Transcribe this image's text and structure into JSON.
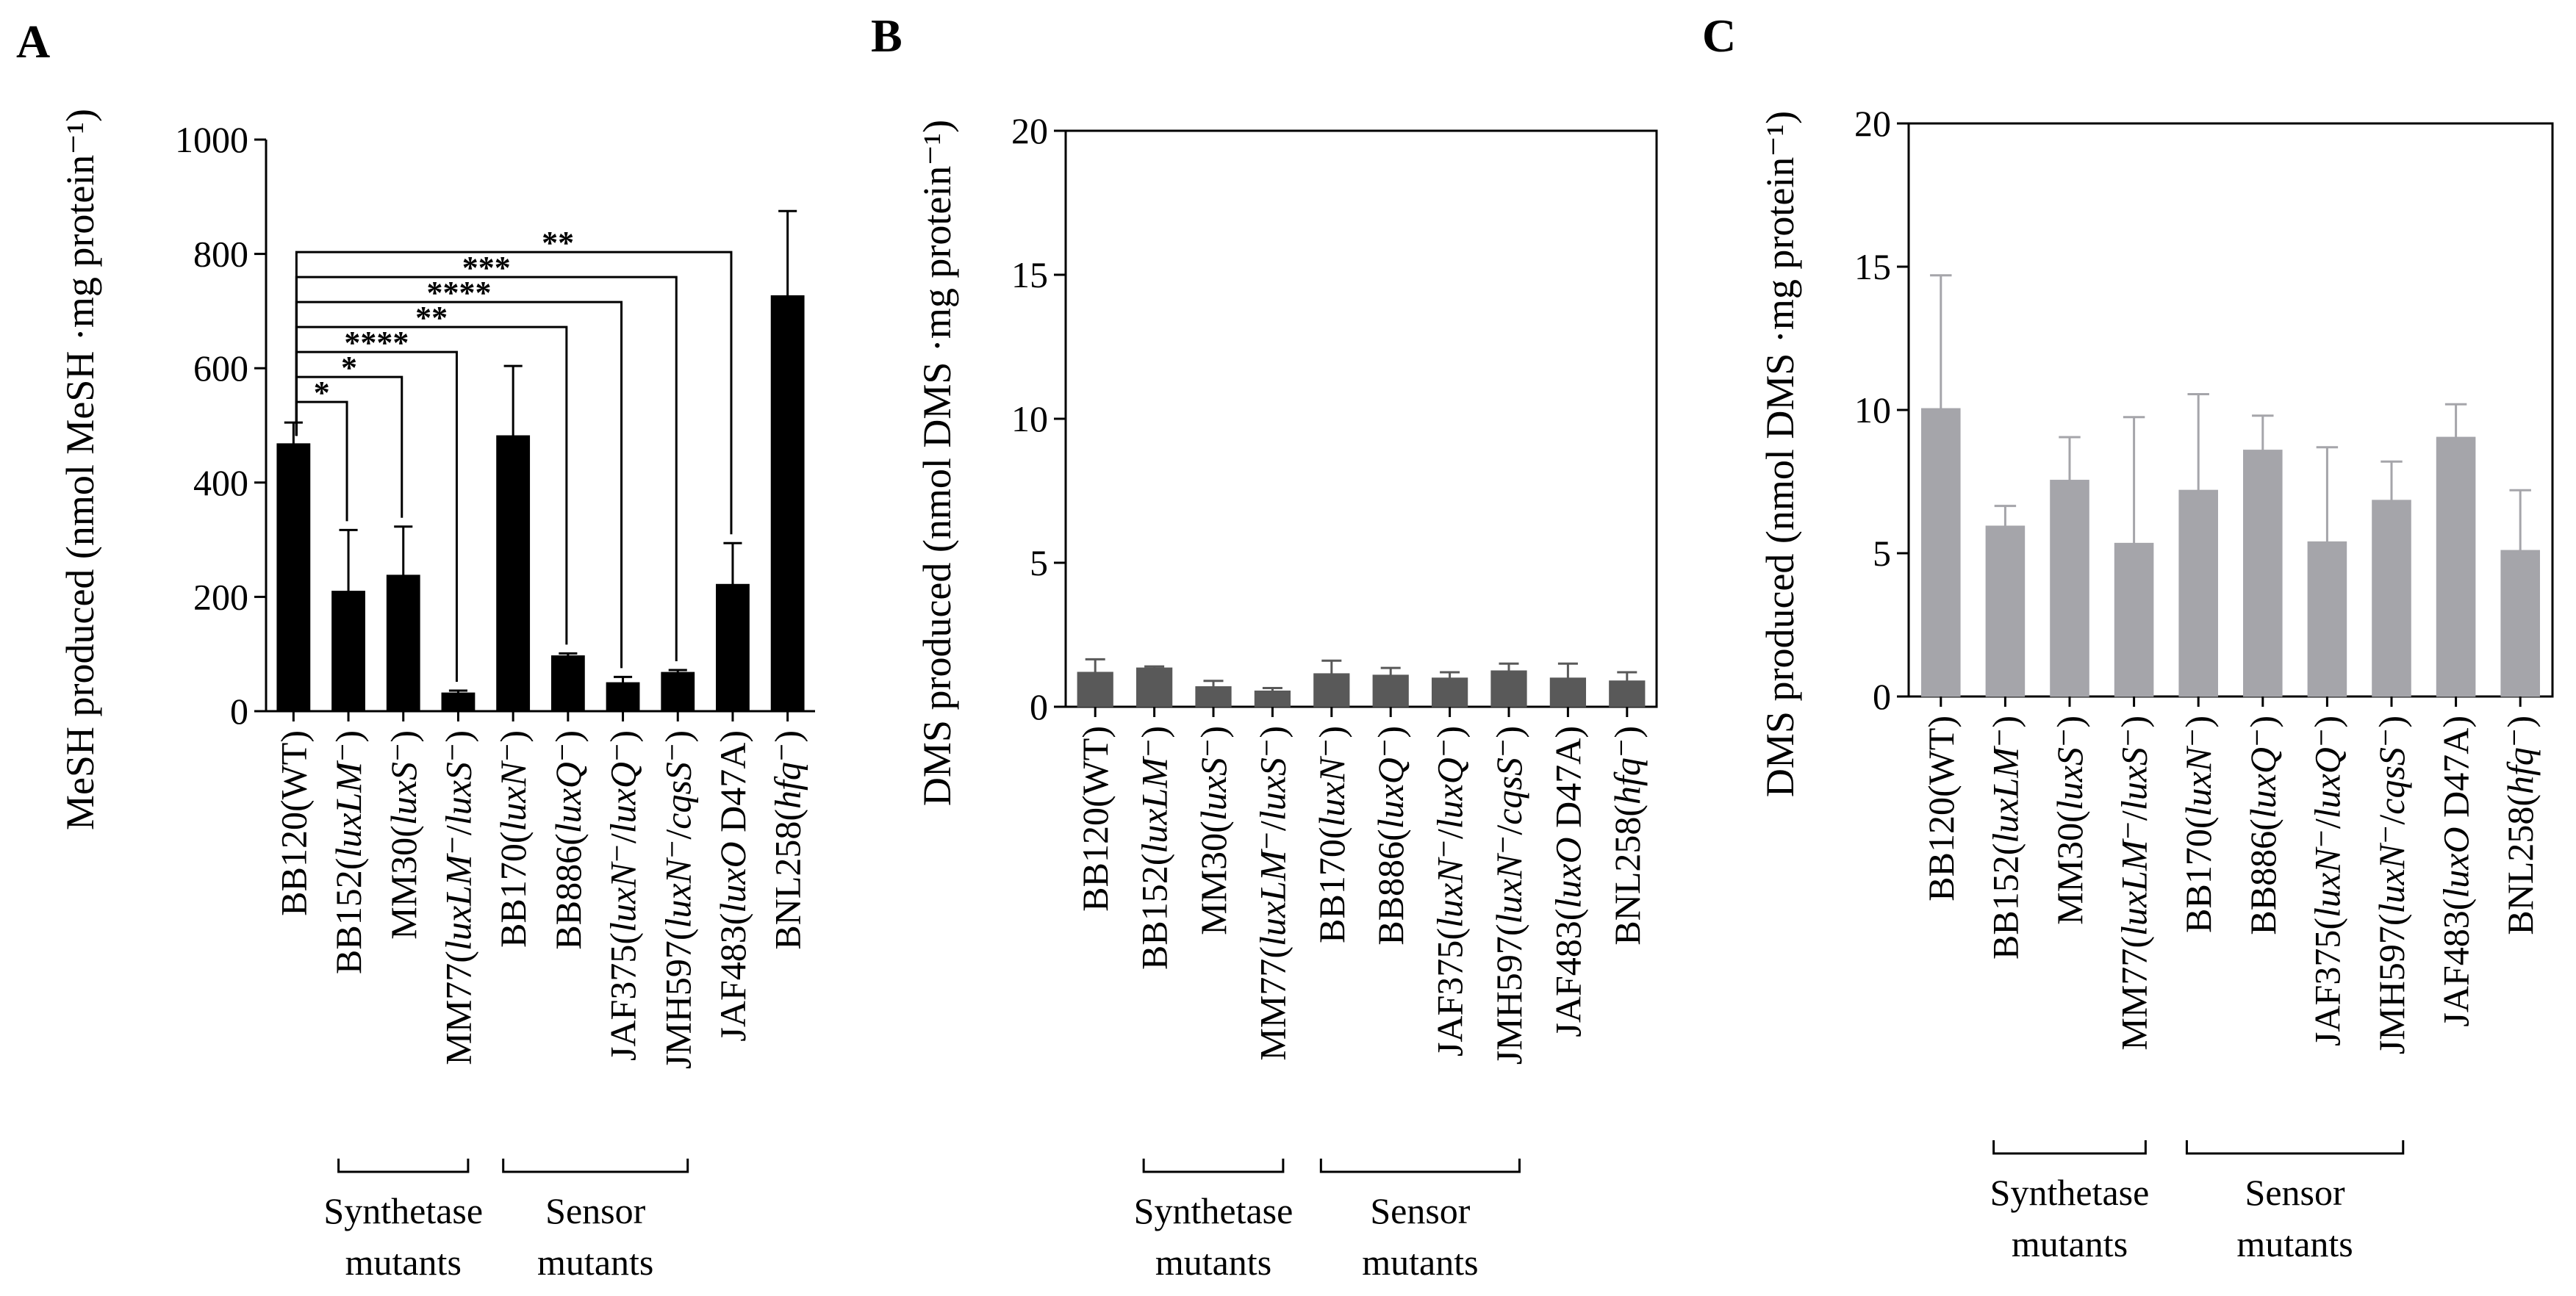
{
  "figure": {
    "groups": [
      {
        "label_line1": "Synthetase",
        "label_line2": "mutants",
        "first_index": 1,
        "last_index": 3
      },
      {
        "label_line1": "Sensor",
        "label_line2": "mutants",
        "first_index": 4,
        "last_index": 7
      }
    ]
  },
  "chart_data": [
    {
      "type": "bar",
      "panel": "A",
      "title": "",
      "ylabel": "MeSH produced (nmol MeSH ·mg protein⁻¹)",
      "xlabel": "",
      "ylim": [
        0,
        1000
      ],
      "yticks": [
        0,
        200,
        400,
        600,
        800,
        1000
      ],
      "bar_color": "#000000",
      "frame": "left-bottom",
      "categories": [
        [
          {
            "t": "BB120(WT)"
          }
        ],
        [
          {
            "t": "BB152("
          },
          {
            "t": "luxLM",
            "i": true
          },
          {
            "t": "⁻",
            "sup": true
          },
          {
            "t": ")"
          }
        ],
        [
          {
            "t": "MM30("
          },
          {
            "t": "luxS",
            "i": true
          },
          {
            "t": "⁻",
            "sup": true
          },
          {
            "t": ")"
          }
        ],
        [
          {
            "t": "MM77("
          },
          {
            "t": "luxLM",
            "i": true
          },
          {
            "t": "⁻",
            "sup": true
          },
          {
            "t": "/"
          },
          {
            "t": "luxS",
            "i": true
          },
          {
            "t": "⁻",
            "sup": true
          },
          {
            "t": ")"
          }
        ],
        [
          {
            "t": "BB170("
          },
          {
            "t": "luxN",
            "i": true
          },
          {
            "t": "⁻",
            "sup": true
          },
          {
            "t": ")"
          }
        ],
        [
          {
            "t": "BB886("
          },
          {
            "t": "luxQ",
            "i": true
          },
          {
            "t": "⁻",
            "sup": true
          },
          {
            "t": ")"
          }
        ],
        [
          {
            "t": "JAF375("
          },
          {
            "t": "luxN",
            "i": true
          },
          {
            "t": "⁻",
            "sup": true
          },
          {
            "t": "/"
          },
          {
            "t": "luxQ",
            "i": true
          },
          {
            "t": "⁻",
            "sup": true
          },
          {
            "t": ")"
          }
        ],
        [
          {
            "t": "JMH597("
          },
          {
            "t": "luxN",
            "i": true
          },
          {
            "t": "⁻",
            "sup": true
          },
          {
            "t": "/"
          },
          {
            "t": "cqsS",
            "i": true
          },
          {
            "t": "⁻",
            "sup": true
          },
          {
            "t": ")"
          }
        ],
        [
          {
            "t": "JAF483("
          },
          {
            "t": "luxO",
            "i": true
          },
          {
            "t": " D47A)"
          }
        ],
        [
          {
            "t": "BNL258("
          },
          {
            "t": "hfq",
            "i": true
          },
          {
            "t": "⁻",
            "sup": true
          },
          {
            "t": ")"
          }
        ]
      ],
      "values": [
        468,
        210,
        238,
        32,
        482,
        97,
        50,
        68,
        222,
        727
      ],
      "errors": [
        37,
        107,
        85,
        4,
        122,
        4,
        10,
        4,
        72,
        148
      ],
      "significance": [
        {
          "target_index": 1,
          "label": "*"
        },
        {
          "target_index": 2,
          "label": "*"
        },
        {
          "target_index": 3,
          "label": "****"
        },
        {
          "target_index": 5,
          "label": "**"
        },
        {
          "target_index": 6,
          "label": "****"
        },
        {
          "target_index": 7,
          "label": "***"
        },
        {
          "target_index": 8,
          "label": "**"
        }
      ]
    },
    {
      "type": "bar",
      "panel": "B",
      "title": "",
      "ylabel": "DMS produced (nmol DMS ·mg protein⁻¹)",
      "xlabel": "",
      "ylim": [
        0,
        20
      ],
      "yticks": [
        0,
        5,
        10,
        15,
        20
      ],
      "bar_color": "#595959",
      "frame": "box",
      "categories": [
        [
          {
            "t": "BB120(WT)"
          }
        ],
        [
          {
            "t": "BB152("
          },
          {
            "t": "luxLM",
            "i": true
          },
          {
            "t": "⁻",
            "sup": true
          },
          {
            "t": ")"
          }
        ],
        [
          {
            "t": "MM30("
          },
          {
            "t": "luxS",
            "i": true
          },
          {
            "t": "⁻",
            "sup": true
          },
          {
            "t": ")"
          }
        ],
        [
          {
            "t": "MM77("
          },
          {
            "t": "luxLM",
            "i": true
          },
          {
            "t": "⁻",
            "sup": true
          },
          {
            "t": "/"
          },
          {
            "t": "luxS",
            "i": true
          },
          {
            "t": "⁻",
            "sup": true
          },
          {
            "t": ")"
          }
        ],
        [
          {
            "t": "BB170("
          },
          {
            "t": "luxN",
            "i": true
          },
          {
            "t": "⁻",
            "sup": true
          },
          {
            "t": ")"
          }
        ],
        [
          {
            "t": "BB886("
          },
          {
            "t": "luxQ",
            "i": true
          },
          {
            "t": "⁻",
            "sup": true
          },
          {
            "t": ")"
          }
        ],
        [
          {
            "t": "JAF375("
          },
          {
            "t": "luxN",
            "i": true
          },
          {
            "t": "⁻",
            "sup": true
          },
          {
            "t": "/"
          },
          {
            "t": "luxQ",
            "i": true
          },
          {
            "t": "⁻",
            "sup": true
          },
          {
            "t": ")"
          }
        ],
        [
          {
            "t": "JMH597("
          },
          {
            "t": "luxN",
            "i": true
          },
          {
            "t": "⁻",
            "sup": true
          },
          {
            "t": "/"
          },
          {
            "t": "cqsS",
            "i": true
          },
          {
            "t": "⁻",
            "sup": true
          },
          {
            "t": ")"
          }
        ],
        [
          {
            "t": "JAF483("
          },
          {
            "t": "luxO",
            "i": true
          },
          {
            "t": " D47A)"
          }
        ],
        [
          {
            "t": "BNL258("
          },
          {
            "t": "hfq",
            "i": true
          },
          {
            "t": "⁻",
            "sup": true
          },
          {
            "t": ")"
          }
        ]
      ],
      "values": [
        1.2,
        1.35,
        0.7,
        0.55,
        1.15,
        1.1,
        1.0,
        1.25,
        1.0,
        0.9
      ],
      "errors": [
        0.45,
        0.05,
        0.2,
        0.1,
        0.45,
        0.25,
        0.2,
        0.25,
        0.5,
        0.3
      ]
    },
    {
      "type": "bar",
      "panel": "C",
      "title": "",
      "ylabel": "DMS produced (nmol DMS ·mg protein⁻¹)",
      "xlabel": "",
      "ylim": [
        0,
        20
      ],
      "yticks": [
        0,
        5,
        10,
        15,
        20
      ],
      "bar_color": "#a5a5aa",
      "frame": "box",
      "categories": [
        [
          {
            "t": "BB120(WT)"
          }
        ],
        [
          {
            "t": "BB152("
          },
          {
            "t": "luxLM",
            "i": true
          },
          {
            "t": "⁻",
            "sup": true
          },
          {
            "t": ")"
          }
        ],
        [
          {
            "t": "MM30("
          },
          {
            "t": "luxS",
            "i": true
          },
          {
            "t": "⁻",
            "sup": true
          },
          {
            "t": ")"
          }
        ],
        [
          {
            "t": "MM77("
          },
          {
            "t": "luxLM",
            "i": true
          },
          {
            "t": "⁻",
            "sup": true
          },
          {
            "t": "/"
          },
          {
            "t": "luxS",
            "i": true
          },
          {
            "t": "⁻",
            "sup": true
          },
          {
            "t": ")"
          }
        ],
        [
          {
            "t": "BB170("
          },
          {
            "t": "luxN",
            "i": true
          },
          {
            "t": "⁻",
            "sup": true
          },
          {
            "t": ")"
          }
        ],
        [
          {
            "t": "BB886("
          },
          {
            "t": "luxQ",
            "i": true
          },
          {
            "t": "⁻",
            "sup": true
          },
          {
            "t": ")"
          }
        ],
        [
          {
            "t": "JAF375("
          },
          {
            "t": "luxN",
            "i": true
          },
          {
            "t": "⁻",
            "sup": true
          },
          {
            "t": "/"
          },
          {
            "t": "luxQ",
            "i": true
          },
          {
            "t": "⁻",
            "sup": true
          },
          {
            "t": ")"
          }
        ],
        [
          {
            "t": "JMH597("
          },
          {
            "t": "luxN",
            "i": true
          },
          {
            "t": "⁻",
            "sup": true
          },
          {
            "t": "/"
          },
          {
            "t": "cqsS",
            "i": true
          },
          {
            "t": "⁻",
            "sup": true
          },
          {
            "t": ")"
          }
        ],
        [
          {
            "t": "JAF483("
          },
          {
            "t": "luxO",
            "i": true
          },
          {
            "t": " D47A)"
          }
        ],
        [
          {
            "t": "BNL258("
          },
          {
            "t": "hfq",
            "i": true
          },
          {
            "t": "⁻",
            "sup": true
          },
          {
            "t": ")"
          }
        ]
      ],
      "values": [
        10.05,
        5.95,
        7.55,
        5.35,
        7.2,
        8.6,
        5.4,
        6.85,
        9.05,
        5.1
      ],
      "errors": [
        4.65,
        0.7,
        1.5,
        4.4,
        3.35,
        1.2,
        3.3,
        1.35,
        1.15,
        2.1
      ]
    }
  ]
}
